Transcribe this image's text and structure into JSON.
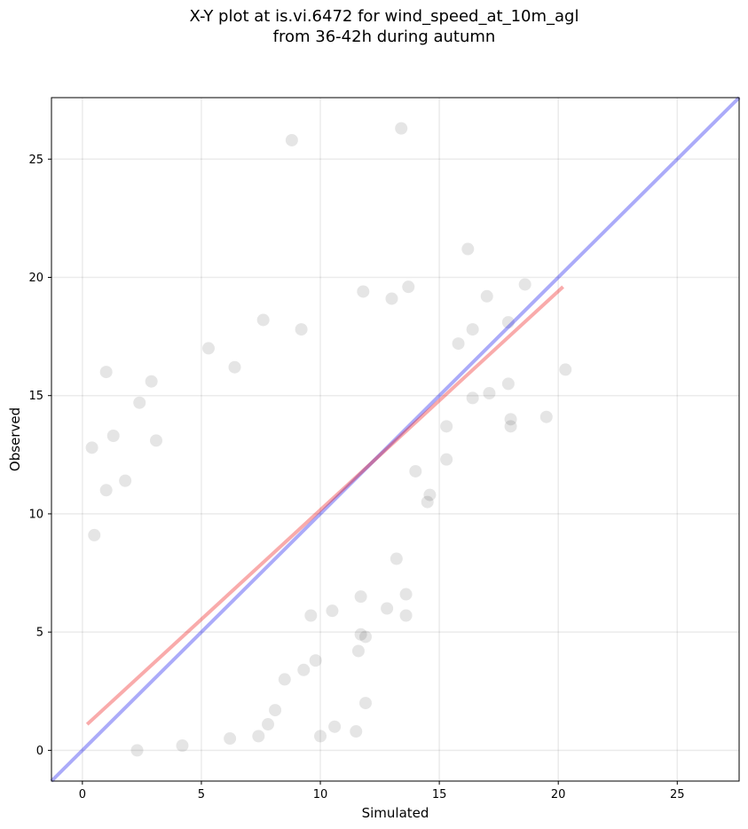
{
  "chart_data": {
    "type": "scatter",
    "title": "X-Y plot at is.vi.6472 for wind_speed_at_10m_agl",
    "subtitle": "from 36-42h during autumn",
    "xlabel": "Simulated",
    "ylabel": "Observed",
    "xlim": [
      -1.3,
      27.6
    ],
    "ylim": [
      -1.3,
      27.6
    ],
    "xticks": [
      0,
      5,
      10,
      15,
      20,
      25
    ],
    "yticks": [
      0,
      5,
      10,
      15,
      20,
      25
    ],
    "grid": true,
    "colors": {
      "points": "#000000",
      "identity_line": "#0000ee",
      "fit_line": "#ee0000"
    },
    "identity_line": {
      "x": [
        -1.3,
        27.6
      ],
      "y": [
        -1.3,
        27.6
      ]
    },
    "fit_line": {
      "x": [
        0.2,
        20.2
      ],
      "y": [
        1.1,
        19.6
      ]
    },
    "points": [
      [
        8.8,
        25.8
      ],
      [
        13.4,
        26.3
      ],
      [
        16.2,
        21.2
      ],
      [
        18.6,
        19.7
      ],
      [
        17.0,
        19.2
      ],
      [
        11.8,
        19.4
      ],
      [
        13.7,
        19.6
      ],
      [
        13.0,
        19.1
      ],
      [
        20.3,
        16.1
      ],
      [
        19.5,
        14.1
      ],
      [
        18.0,
        14.0
      ],
      [
        18.0,
        13.7
      ],
      [
        17.9,
        15.5
      ],
      [
        17.1,
        15.1
      ],
      [
        16.4,
        14.9
      ],
      [
        15.3,
        12.3
      ],
      [
        15.3,
        13.7
      ],
      [
        15.8,
        17.2
      ],
      [
        16.4,
        17.8
      ],
      [
        17.9,
        18.1
      ],
      [
        7.6,
        18.2
      ],
      [
        9.2,
        17.8
      ],
      [
        1.0,
        16.0
      ],
      [
        2.9,
        15.6
      ],
      [
        2.4,
        14.7
      ],
      [
        0.4,
        12.8
      ],
      [
        0.5,
        9.1
      ],
      [
        5.3,
        17.0
      ],
      [
        6.4,
        16.2
      ],
      [
        3.1,
        13.1
      ],
      [
        1.3,
        13.3
      ],
      [
        1.0,
        11.0
      ],
      [
        1.8,
        11.4
      ],
      [
        13.6,
        5.7
      ],
      [
        12.8,
        6.0
      ],
      [
        11.9,
        4.8
      ],
      [
        11.7,
        4.9
      ],
      [
        11.6,
        4.2
      ],
      [
        11.9,
        2.0
      ],
      [
        11.5,
        0.8
      ],
      [
        10.6,
        1.0
      ],
      [
        10.0,
        0.6
      ],
      [
        7.4,
        0.6
      ],
      [
        6.2,
        0.5
      ],
      [
        4.2,
        0.2
      ],
      [
        2.3,
        0.0
      ],
      [
        13.2,
        8.1
      ],
      [
        13.6,
        6.6
      ],
      [
        14.5,
        10.5
      ],
      [
        14.6,
        10.8
      ],
      [
        14.0,
        11.8
      ],
      [
        11.7,
        6.5
      ],
      [
        10.5,
        5.9
      ],
      [
        9.6,
        5.7
      ],
      [
        9.3,
        3.4
      ],
      [
        9.8,
        3.8
      ],
      [
        8.5,
        3.0
      ],
      [
        8.1,
        1.7
      ],
      [
        7.8,
        1.1
      ]
    ]
  }
}
